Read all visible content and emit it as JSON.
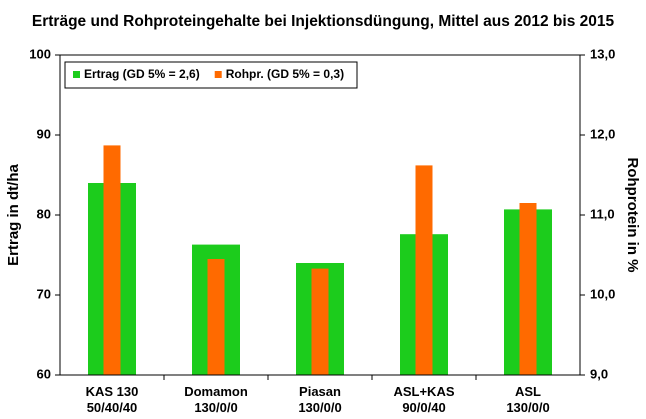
{
  "chart_data": {
    "type": "bar",
    "title": "Erträge und Rohproteingehalte bei Injektionsdüngung, Mittel aus 2012 bis 2015",
    "y_label": "Ertrag in dt/ha",
    "y2_label": "Rohprotein in %",
    "categories": [
      [
        "KAS 130",
        "50/40/40"
      ],
      [
        "Domamon",
        "130/0/0"
      ],
      [
        "Piasan",
        "130/0/0"
      ],
      [
        "ASL+KAS",
        "90/0/40"
      ],
      [
        "ASL",
        "130/0/0"
      ]
    ],
    "series": [
      {
        "name": "Ertrag (GD 5% = 2,6)",
        "color": "#1ccc1c",
        "values": [
          84.0,
          76.3,
          74.0,
          77.6,
          80.7
        ]
      },
      {
        "name": "Rohpr. (GD 5% = 0,3)",
        "color": "#ff6a00",
        "axis": "y2",
        "values": [
          11.87,
          10.45,
          10.33,
          11.62,
          11.15
        ]
      }
    ],
    "ylim": [
      60,
      100
    ],
    "yticks": [
      60,
      70,
      80,
      90,
      100
    ],
    "y2lim": [
      9,
      13
    ],
    "y2ticks": [
      {
        "value": 9,
        "label": "9,0"
      },
      {
        "value": 10,
        "label": "10,0"
      },
      {
        "value": 11,
        "label": "11,0"
      },
      {
        "value": 12,
        "label": "12,0"
      },
      {
        "value": 13,
        "label": "13,0"
      }
    ],
    "legend": "top-left"
  }
}
